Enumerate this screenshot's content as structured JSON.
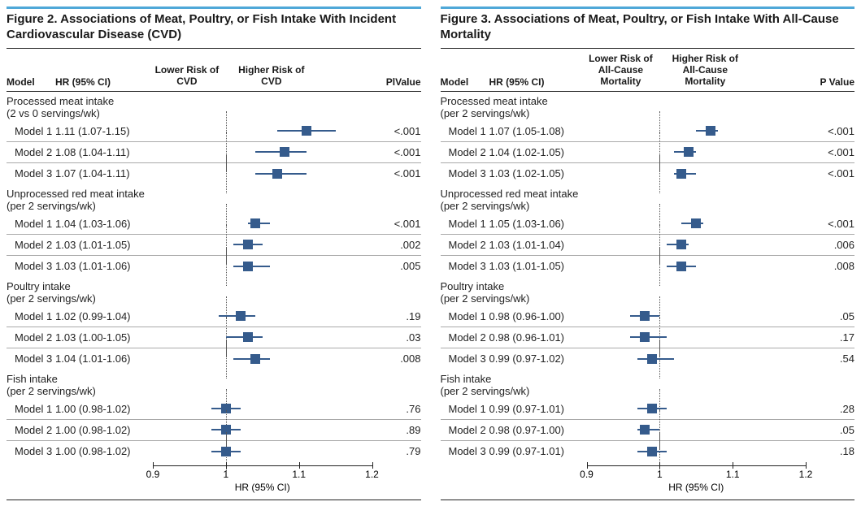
{
  "colors": {
    "accent_rule": "#4fa8d8",
    "marker": "#355b8c",
    "text": "#1a1a1a",
    "divider": "#aaaaaa"
  },
  "xaxis": {
    "min": 0.9,
    "max": 1.2,
    "ticks": [
      0.9,
      1.0,
      1.1,
      1.2
    ],
    "ref": 1.0,
    "label": "HR (95% CI)"
  },
  "figures": [
    {
      "title": "Figure 2. Associations of Meat, Poultry, or Fish Intake With Incident Cardiovascular Disease (CVD)",
      "lower_label": "Lower Risk of CVD",
      "higher_label": "Higher Risk of CVD",
      "head_model": "Model",
      "head_hr": "HR (95% CI)",
      "head_p": "PlValue",
      "groups": [
        {
          "title": "Processed meat intake",
          "sub": "(2 vs 0 servings/wk)",
          "rows": [
            {
              "model": "Model 1",
              "hr_text": "1.11 (1.07-1.15)",
              "hr": 1.11,
              "lo": 1.07,
              "hi": 1.15,
              "p": "<.001"
            },
            {
              "model": "Model 2",
              "hr_text": "1.08 (1.04-1.11)",
              "hr": 1.08,
              "lo": 1.04,
              "hi": 1.11,
              "p": "<.001"
            },
            {
              "model": "Model 3",
              "hr_text": "1.07 (1.04-1.11)",
              "hr": 1.07,
              "lo": 1.04,
              "hi": 1.11,
              "p": "<.001"
            }
          ]
        },
        {
          "title": "Unprocessed red meat intake",
          "sub": "(per 2 servings/wk)",
          "rows": [
            {
              "model": "Model 1",
              "hr_text": "1.04 (1.03-1.06)",
              "hr": 1.04,
              "lo": 1.03,
              "hi": 1.06,
              "p": "<.001"
            },
            {
              "model": "Model 2",
              "hr_text": "1.03 (1.01-1.05)",
              "hr": 1.03,
              "lo": 1.01,
              "hi": 1.05,
              "p": ".002"
            },
            {
              "model": "Model 3",
              "hr_text": "1.03 (1.01-1.06)",
              "hr": 1.03,
              "lo": 1.01,
              "hi": 1.06,
              "p": ".005"
            }
          ]
        },
        {
          "title": "Poultry intake",
          "sub": "(per 2 servings/wk)",
          "rows": [
            {
              "model": "Model 1",
              "hr_text": "1.02 (0.99-1.04)",
              "hr": 1.02,
              "lo": 0.99,
              "hi": 1.04,
              "p": ".19"
            },
            {
              "model": "Model 2",
              "hr_text": "1.03 (1.00-1.05)",
              "hr": 1.03,
              "lo": 1.0,
              "hi": 1.05,
              "p": ".03"
            },
            {
              "model": "Model 3",
              "hr_text": "1.04 (1.01-1.06)",
              "hr": 1.04,
              "lo": 1.01,
              "hi": 1.06,
              "p": ".008"
            }
          ]
        },
        {
          "title": "Fish intake",
          "sub": "(per 2 servings/wk)",
          "rows": [
            {
              "model": "Model 1",
              "hr_text": "1.00 (0.98-1.02)",
              "hr": 1.0,
              "lo": 0.98,
              "hi": 1.02,
              "p": ".76"
            },
            {
              "model": "Model 2",
              "hr_text": "1.00 (0.98-1.02)",
              "hr": 1.0,
              "lo": 0.98,
              "hi": 1.02,
              "p": ".89"
            },
            {
              "model": "Model 3",
              "hr_text": "1.00 (0.98-1.02)",
              "hr": 1.0,
              "lo": 0.98,
              "hi": 1.02,
              "p": ".79"
            }
          ]
        }
      ]
    },
    {
      "title": "Figure 3. Associations of Meat, Poultry, or Fish Intake With All-Cause Mortality",
      "lower_label": "Lower Risk of All-Cause Mortality",
      "higher_label": "Higher Risk of All-Cause Mortality",
      "head_model": "Model",
      "head_hr": "HR (95% CI)",
      "head_p": "P Value",
      "groups": [
        {
          "title": "Processed meat intake",
          "sub": "(per 2 servings/wk)",
          "rows": [
            {
              "model": "Model 1",
              "hr_text": "1.07 (1.05-1.08)",
              "hr": 1.07,
              "lo": 1.05,
              "hi": 1.08,
              "p": "<.001"
            },
            {
              "model": "Model 2",
              "hr_text": "1.04 (1.02-1.05)",
              "hr": 1.04,
              "lo": 1.02,
              "hi": 1.05,
              "p": "<.001"
            },
            {
              "model": "Model 3",
              "hr_text": "1.03 (1.02-1.05)",
              "hr": 1.03,
              "lo": 1.02,
              "hi": 1.05,
              "p": "<.001"
            }
          ]
        },
        {
          "title": "Unprocessed red meat intake",
          "sub": "(per 2 servings/wk)",
          "rows": [
            {
              "model": "Model 1",
              "hr_text": "1.05 (1.03-1.06)",
              "hr": 1.05,
              "lo": 1.03,
              "hi": 1.06,
              "p": "<.001"
            },
            {
              "model": "Model 2",
              "hr_text": "1.03 (1.01-1.04)",
              "hr": 1.03,
              "lo": 1.01,
              "hi": 1.04,
              "p": ".006"
            },
            {
              "model": "Model 3",
              "hr_text": "1.03 (1.01-1.05)",
              "hr": 1.03,
              "lo": 1.01,
              "hi": 1.05,
              "p": ".008"
            }
          ]
        },
        {
          "title": "Poultry intake",
          "sub": "(per 2 servings/wk)",
          "rows": [
            {
              "model": "Model 1",
              "hr_text": "0.98 (0.96-1.00)",
              "hr": 0.98,
              "lo": 0.96,
              "hi": 1.0,
              "p": ".05"
            },
            {
              "model": "Model 2",
              "hr_text": "0.98 (0.96-1.01)",
              "hr": 0.98,
              "lo": 0.96,
              "hi": 1.01,
              "p": ".17"
            },
            {
              "model": "Model 3",
              "hr_text": "0.99 (0.97-1.02)",
              "hr": 0.99,
              "lo": 0.97,
              "hi": 1.02,
              "p": ".54"
            }
          ]
        },
        {
          "title": "Fish intake",
          "sub": "(per 2 servings/wk)",
          "rows": [
            {
              "model": "Model 1",
              "hr_text": "0.99 (0.97-1.01)",
              "hr": 0.99,
              "lo": 0.97,
              "hi": 1.01,
              "p": ".28"
            },
            {
              "model": "Model 2",
              "hr_text": "0.98 (0.97-1.00)",
              "hr": 0.98,
              "lo": 0.97,
              "hi": 1.0,
              "p": ".05"
            },
            {
              "model": "Model 3",
              "hr_text": "0.99 (0.97-1.01)",
              "hr": 0.99,
              "lo": 0.97,
              "hi": 1.01,
              "p": ".18"
            }
          ]
        }
      ]
    }
  ]
}
